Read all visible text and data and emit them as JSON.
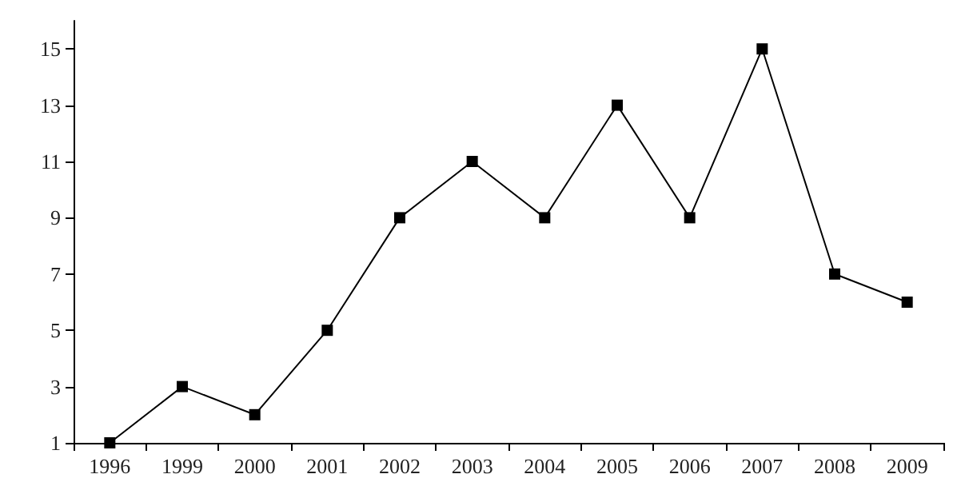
{
  "chart_data": {
    "type": "line",
    "categories": [
      "1996",
      "1999",
      "2000",
      "2001",
      "2002",
      "2003",
      "2004",
      "2005",
      "2006",
      "2007",
      "2008",
      "2009"
    ],
    "series": [
      {
        "color": "#000000",
        "values": [
          1,
          3,
          2,
          5,
          9,
          11,
          9,
          13,
          9,
          15,
          7,
          6
        ]
      }
    ],
    "ylim": [
      1,
      16
    ],
    "yticks": [
      1,
      3,
      5,
      7,
      9,
      11,
      13,
      15
    ],
    "grid": false,
    "marker": "square",
    "line_style": "solid"
  }
}
